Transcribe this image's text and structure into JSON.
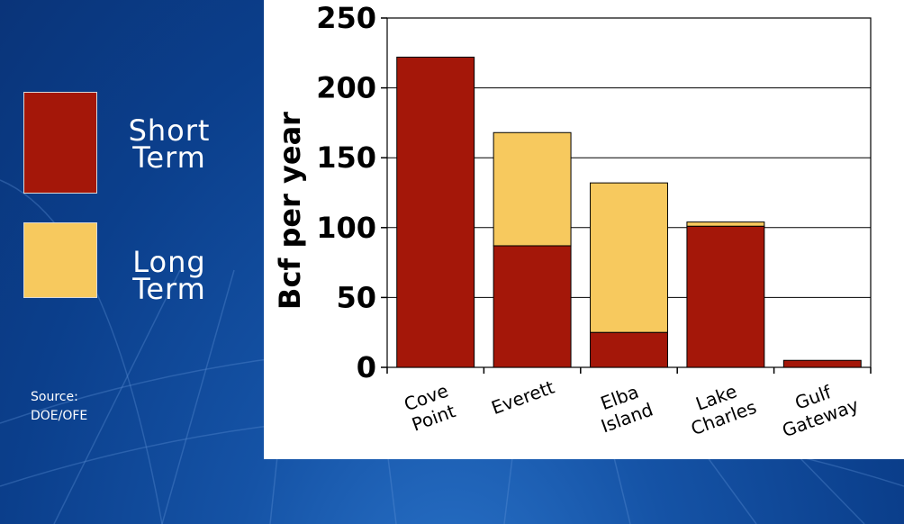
{
  "legend": {
    "items": [
      {
        "label_line1": "Short",
        "label_line2": "Term",
        "color": "#a41709"
      },
      {
        "label_line1": "Long",
        "label_line2": "Term",
        "color": "#f7c95e"
      }
    ]
  },
  "source_label": "Source:",
  "source_value": "DOE/OFE",
  "chart_data": {
    "type": "bar",
    "stacked": true,
    "categories": [
      [
        "Cove",
        "Point"
      ],
      [
        "Everett"
      ],
      [
        "Elba",
        "Island"
      ],
      [
        "Lake",
        "Charles"
      ],
      [
        "Gulf",
        "Gateway"
      ]
    ],
    "series": [
      {
        "values": [
          222,
          87,
          25,
          101,
          5
        ],
        "color": "#a41709"
      },
      {
        "values": [
          0,
          81,
          107,
          3,
          0
        ],
        "color": "#f7c95e"
      }
    ],
    "ylabel": "Bcf per year",
    "ylim": [
      0,
      250
    ],
    "yticks": [
      0,
      50,
      100,
      150,
      200,
      250
    ],
    "grid": true
  }
}
